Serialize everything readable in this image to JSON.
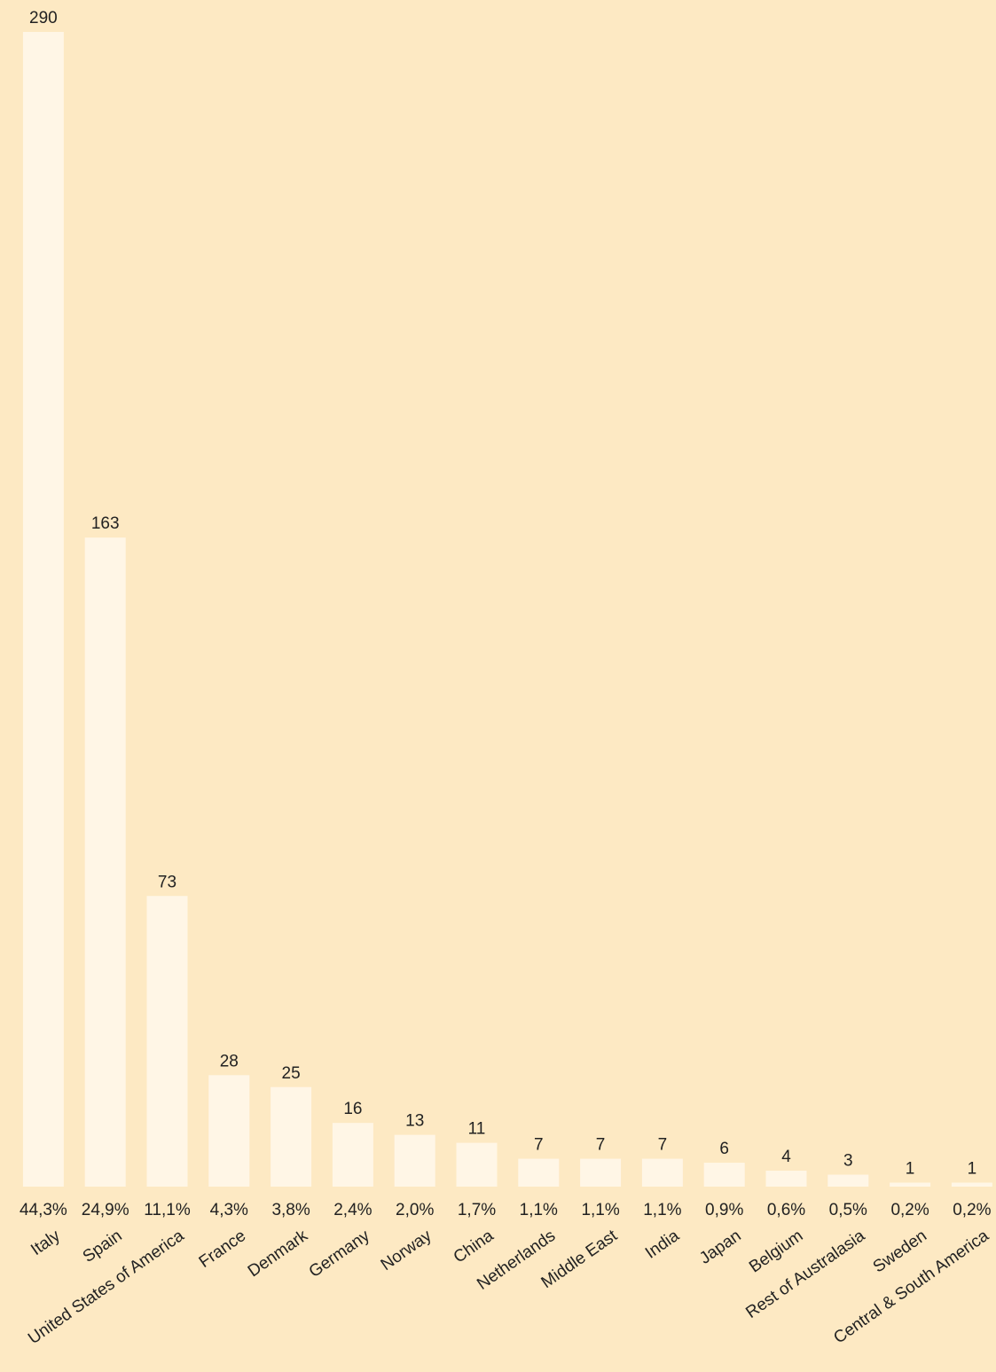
{
  "chart_data": {
    "type": "bar",
    "categories": [
      "Italy",
      "Spain",
      "United States of America",
      "France",
      "Denmark",
      "Germany",
      "Norway",
      "China",
      "Netherlands",
      "Middle East",
      "India",
      "Japan",
      "Belgium",
      "Rest of  Australasia",
      "Sweden",
      "Central & South America"
    ],
    "values": [
      290,
      163,
      73,
      28,
      25,
      16,
      13,
      11,
      7,
      7,
      7,
      6,
      4,
      3,
      1,
      1
    ],
    "share_labels": [
      "44,3%",
      "24,9%",
      "11,1%",
      "4,3%",
      "3,8%",
      "2,4%",
      "2,0%",
      "1,7%",
      "1,1%",
      "1,1%",
      "1,1%",
      "0,9%",
      "0,6%",
      "0,5%",
      "0,2%",
      "0,2%"
    ],
    "color": "#fff6e6",
    "ylim": [
      0,
      290
    ],
    "grid": false
  }
}
